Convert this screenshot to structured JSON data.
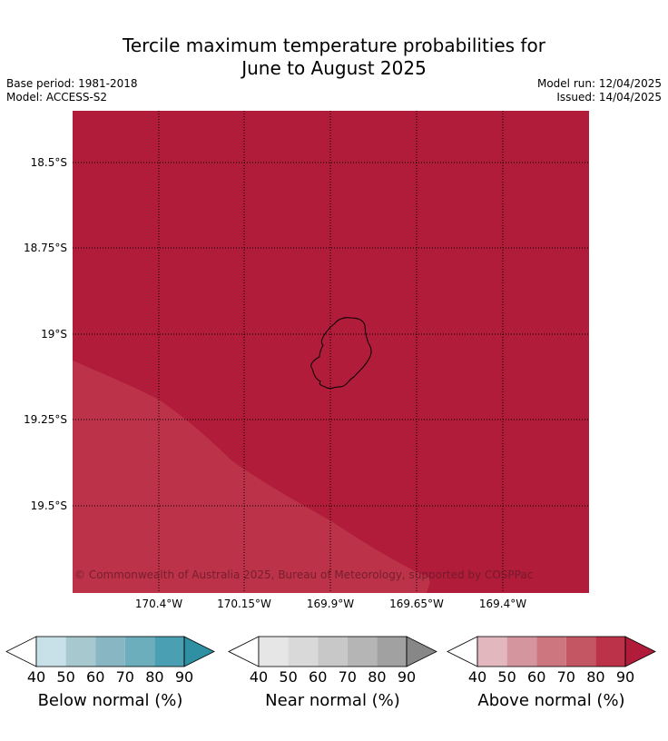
{
  "header": {
    "title_line1": "Tercile maximum temperature probabilities for",
    "title_line2": "June to August 2025",
    "base_period": "Base period: 1981-2018",
    "model": "Model: ACCESS-S2",
    "model_run": "Model run: 12/04/2025",
    "issued": "Issued: 14/04/2025"
  },
  "map": {
    "lat_labels": [
      "18.5°S",
      "18.75°S",
      "19°S",
      "19.25°S",
      "19.5°S"
    ],
    "lon_labels": [
      "170.4°W",
      "170.15°W",
      "169.9°W",
      "169.65°W",
      "169.4°W"
    ],
    "copyright": "© Commonwealth of Australia 2025, Bureau of Meteorology, supported by COSPPac",
    "colors": {
      "above_90": "#b01c3a",
      "above_80": "#bc3349",
      "gridline": "#000000",
      "coastline": "#000000"
    },
    "regions": [
      {
        "category": "Above normal",
        "probability_range": "90+",
        "color": "#b01c3a"
      },
      {
        "category": "Above normal",
        "probability_range": "80-90",
        "color": "#bc3349"
      }
    ]
  },
  "colorbars": [
    {
      "caption": "Below normal (%)",
      "ticks": [
        "40",
        "50",
        "60",
        "70",
        "80",
        "90"
      ],
      "under_color": "#ffffff",
      "colors": [
        "#c8e1e8",
        "#a7c8cf",
        "#88b7c3",
        "#6daebd",
        "#4b9fb3"
      ],
      "over_color": "#2f8fa3"
    },
    {
      "caption": "Near normal (%)",
      "ticks": [
        "40",
        "50",
        "60",
        "70",
        "80",
        "90"
      ],
      "under_color": "#ffffff",
      "colors": [
        "#e6e6e6",
        "#d9d9d9",
        "#c8c8c8",
        "#b5b5b5",
        "#a1a1a1"
      ],
      "over_color": "#878787"
    },
    {
      "caption": "Above normal (%)",
      "ticks": [
        "40",
        "50",
        "60",
        "70",
        "80",
        "90"
      ],
      "under_color": "#ffffff",
      "colors": [
        "#e2b7bd",
        "#d4959e",
        "#cd7680",
        "#c45664",
        "#bc3349"
      ],
      "over_color": "#b01c3a"
    }
  ]
}
